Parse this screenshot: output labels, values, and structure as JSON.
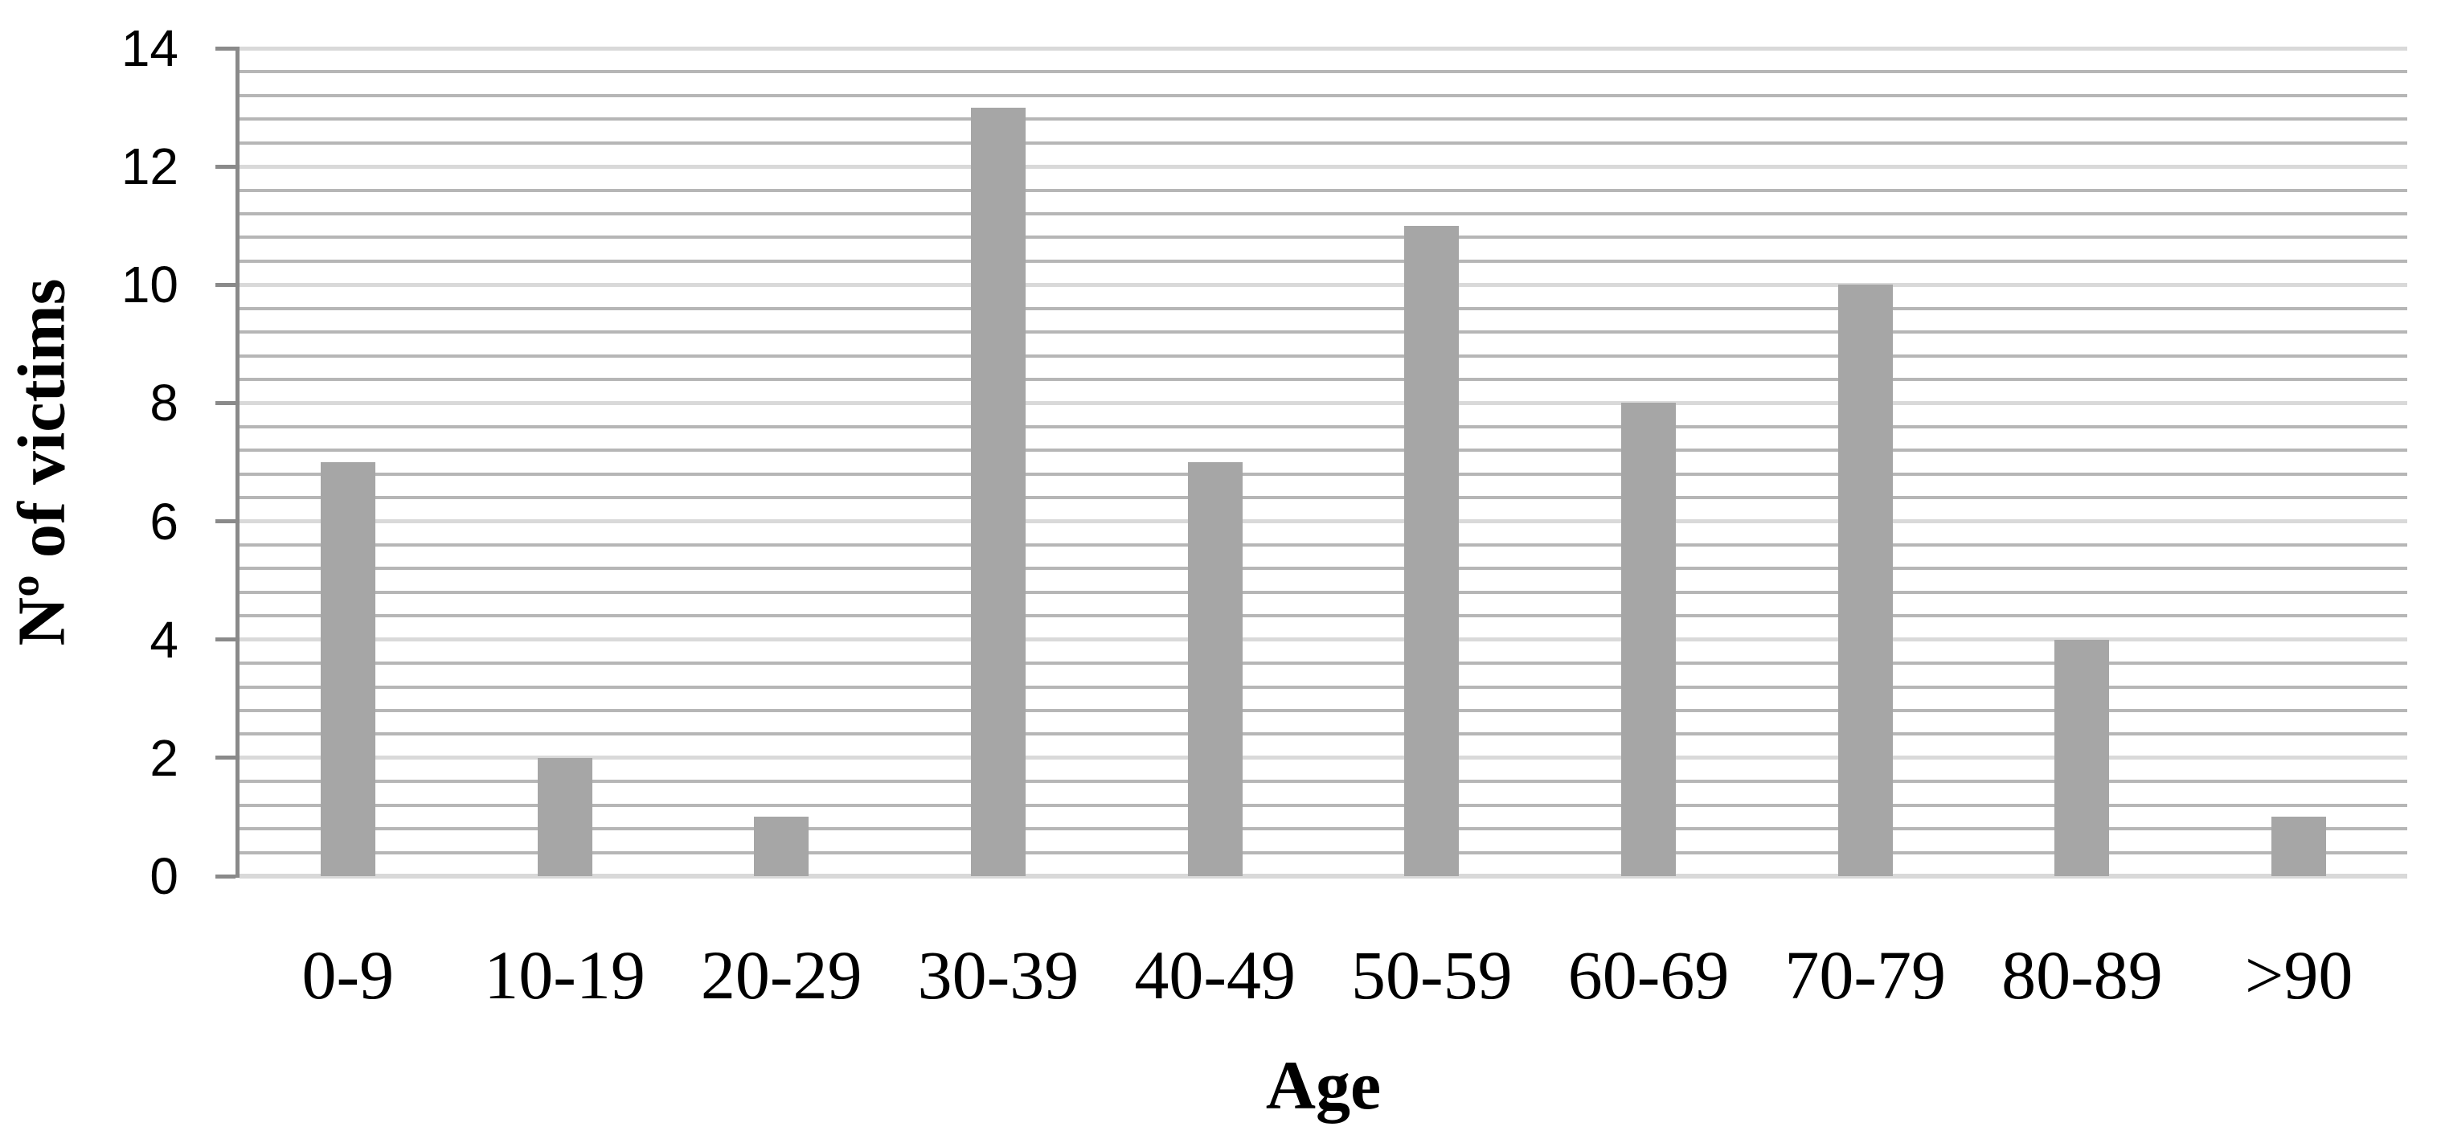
{
  "chart_data": {
    "type": "bar",
    "title": "",
    "categories": [
      "0-9",
      "10-19",
      "20-29",
      "30-39",
      "40-49",
      "50-59",
      "60-69",
      "70-79",
      "80-89",
      ">90"
    ],
    "values": [
      7,
      2,
      1,
      13,
      7,
      11,
      8,
      10,
      4,
      1
    ],
    "xlabel": "Age",
    "ylabel": "Nº of victims",
    "ylim": [
      0,
      14
    ],
    "y_major_unit": 2,
    "y_minor_unit": 0.4,
    "y_tick_labels": [
      "0",
      "2",
      "4",
      "6",
      "8",
      "10",
      "12",
      "14"
    ],
    "grid": "horizontal major and minor gridlines, no vertical gridlines",
    "legend": "none",
    "colors": {
      "bar": "#a6a6a6",
      "major_gridline": "#d9d9d9",
      "minor_gridline": "#b6b6b6",
      "baseline": "#d9d9d9",
      "axis": "#8a8a8a",
      "text": "#000000",
      "background": "#ffffff"
    }
  }
}
